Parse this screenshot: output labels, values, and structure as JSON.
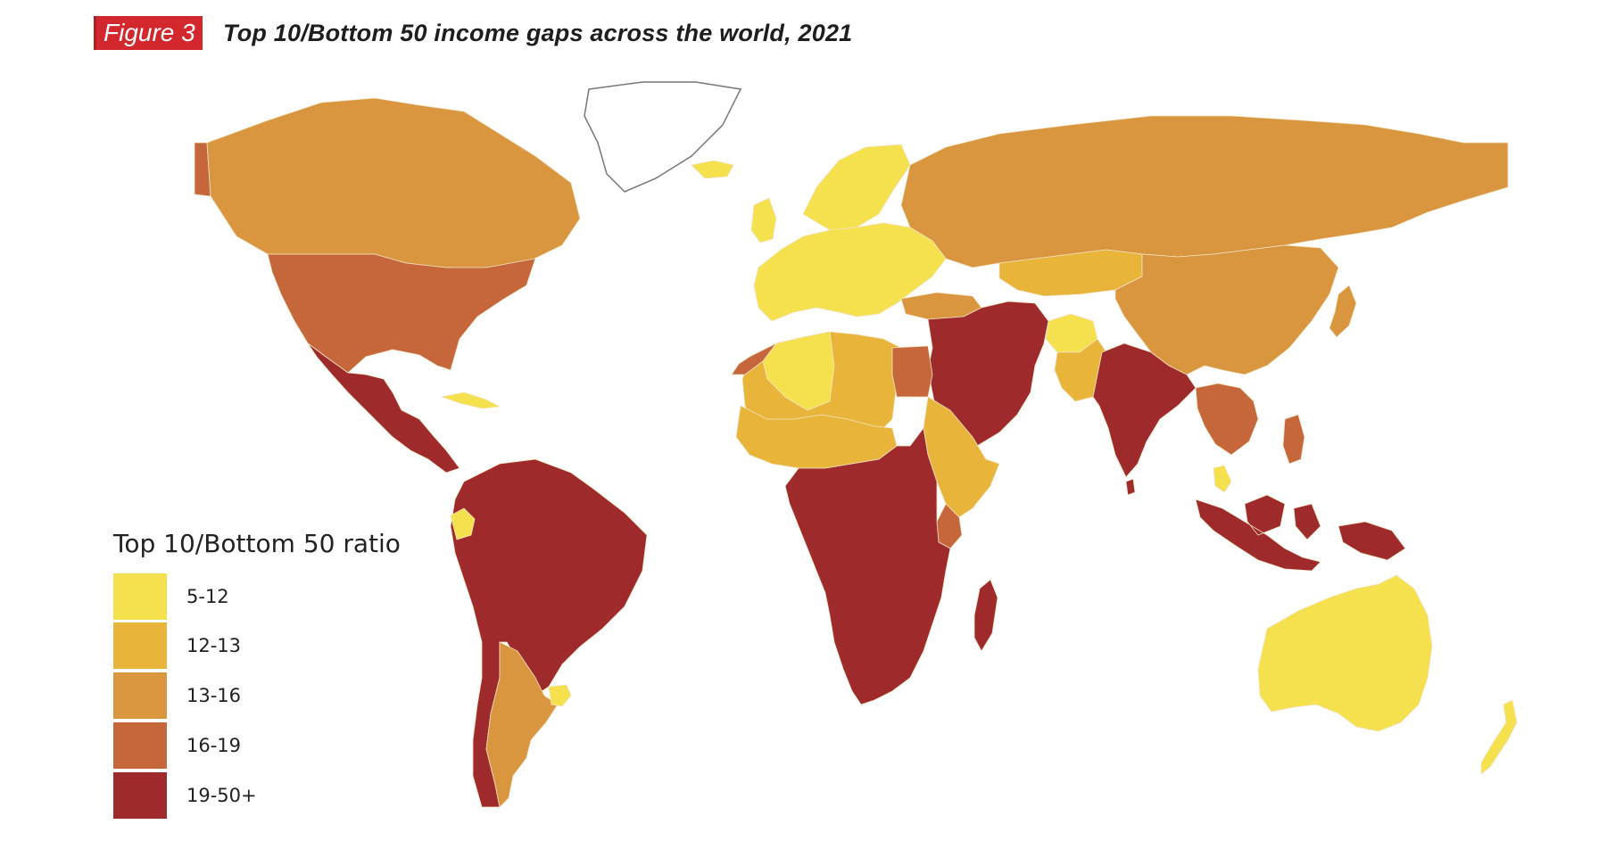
{
  "figure": {
    "label": "Figure 3",
    "title": "Top 10/Bottom 50 income gaps across the world, 2021"
  },
  "legend": {
    "title": "Top 10/Bottom 50 ratio",
    "items": [
      {
        "label": "5-12",
        "color": "#f5e04e"
      },
      {
        "label": "12-13",
        "color": "#e8b53a"
      },
      {
        "label": "13-16",
        "color": "#d9963f"
      },
      {
        "label": "16-19",
        "color": "#c5673a"
      },
      {
        "label": "19-50+",
        "color": "#9e2a2b"
      }
    ]
  },
  "colors": {
    "badge": "#d3272e",
    "ocean": "#ffffff",
    "border": "#f3e3c4",
    "greenland_outline": "#777777"
  },
  "regions": [
    {
      "name": "alaska",
      "bin": "16-19"
    },
    {
      "name": "canada",
      "bin": "13-16"
    },
    {
      "name": "greenland",
      "bin": "none"
    },
    {
      "name": "usa",
      "bin": "16-19"
    },
    {
      "name": "mexico-central-america",
      "bin": "19-50+"
    },
    {
      "name": "cuba",
      "bin": "5-12"
    },
    {
      "name": "south-america-north",
      "bin": "19-50+"
    },
    {
      "name": "ecuador",
      "bin": "5-12"
    },
    {
      "name": "argentina",
      "bin": "13-16"
    },
    {
      "name": "uruguay",
      "bin": "5-12"
    },
    {
      "name": "iceland",
      "bin": "5-12"
    },
    {
      "name": "uk-ireland",
      "bin": "5-12"
    },
    {
      "name": "europe",
      "bin": "5-12"
    },
    {
      "name": "scandinavia",
      "bin": "5-12"
    },
    {
      "name": "turkey",
      "bin": "13-16"
    },
    {
      "name": "russia",
      "bin": "13-16"
    },
    {
      "name": "kazakhstan",
      "bin": "12-13"
    },
    {
      "name": "china-mongolia",
      "bin": "13-16"
    },
    {
      "name": "japan",
      "bin": "13-16"
    },
    {
      "name": "middle-east",
      "bin": "19-50+"
    },
    {
      "name": "afghanistan",
      "bin": "5-12"
    },
    {
      "name": "pakistan",
      "bin": "12-13"
    },
    {
      "name": "india",
      "bin": "19-50+"
    },
    {
      "name": "sri-lanka",
      "bin": "19-50+"
    },
    {
      "name": "southeast-asia",
      "bin": "16-19"
    },
    {
      "name": "malaysia",
      "bin": "5-12"
    },
    {
      "name": "indonesia",
      "bin": "19-50+"
    },
    {
      "name": "philippines",
      "bin": "16-19"
    },
    {
      "name": "papua-new-guinea",
      "bin": "19-50+"
    },
    {
      "name": "australia",
      "bin": "5-12"
    },
    {
      "name": "new-zealand",
      "bin": "5-12"
    },
    {
      "name": "north-africa",
      "bin": "12-13"
    },
    {
      "name": "algeria",
      "bin": "5-12"
    },
    {
      "name": "morocco",
      "bin": "16-19"
    },
    {
      "name": "egypt",
      "bin": "16-19"
    },
    {
      "name": "sahel",
      "bin": "12-13"
    },
    {
      "name": "horn-of-africa",
      "bin": "12-13"
    },
    {
      "name": "kenya",
      "bin": "16-19"
    },
    {
      "name": "central-southern-africa",
      "bin": "19-50+"
    },
    {
      "name": "madagascar",
      "bin": "19-50+"
    }
  ]
}
